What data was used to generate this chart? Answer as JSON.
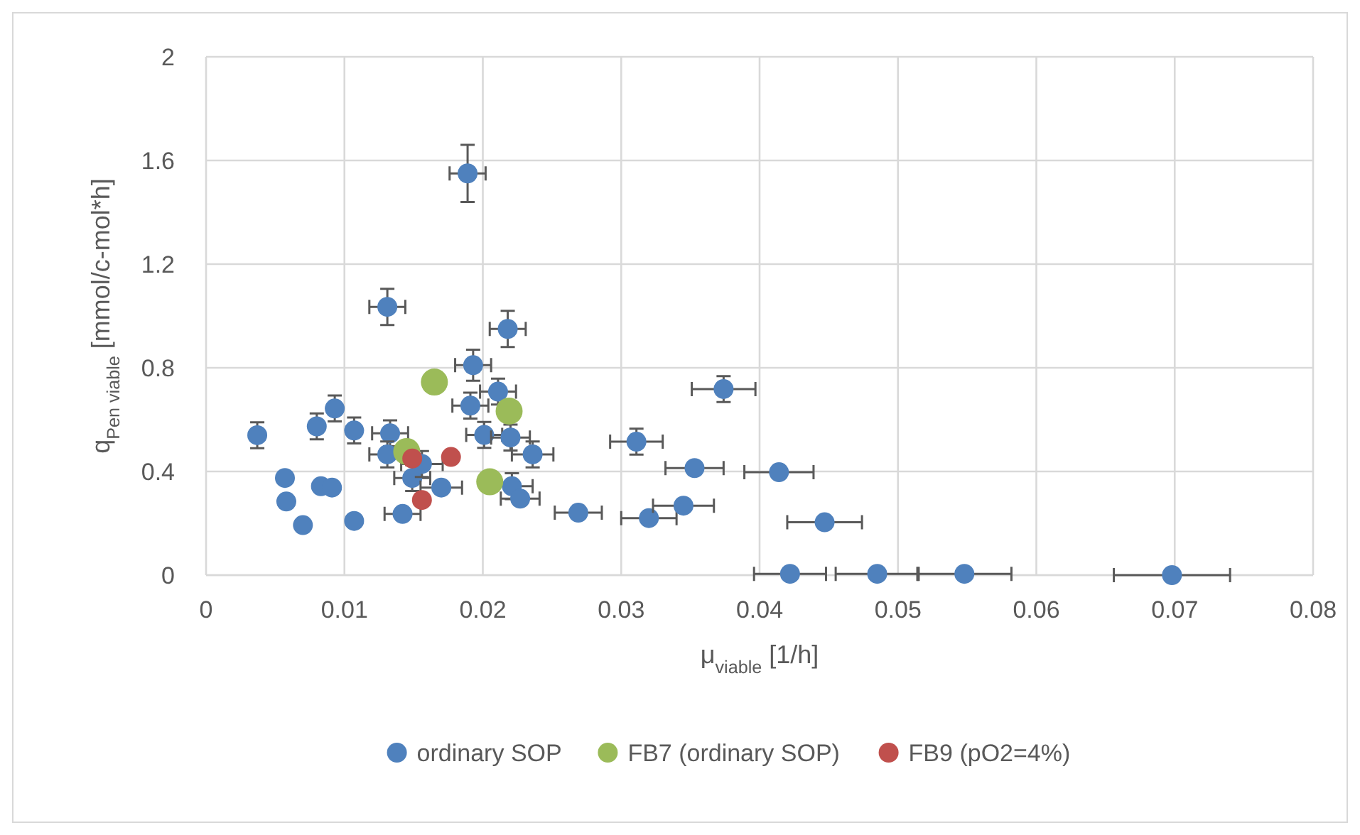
{
  "chart_data": {
    "type": "scatter",
    "xlabel": "μ$_{viable}$ [1/h]",
    "ylabel": "q$_{Pen viable}$ [mmol/c-mol*h]",
    "xlim": [
      0,
      0.08
    ],
    "xticks": [
      0,
      0.01,
      0.02,
      0.03,
      0.04,
      0.05,
      0.06,
      0.07,
      0.08
    ],
    "ylim": [
      0,
      2
    ],
    "yticks": [
      0,
      0.4,
      0.8,
      1.2,
      1.6,
      2
    ],
    "grid": true,
    "legend": "bottom",
    "marker": "circle",
    "series": [
      {
        "name": "ordinary SOP",
        "color": "#4f81bd",
        "x": [
          0.0037,
          0.0057,
          0.0058,
          0.007,
          0.008,
          0.0093,
          0.0083,
          0.0091,
          0.0107,
          0.0107,
          0.0133,
          0.0131,
          0.0142,
          0.0149,
          0.0156,
          0.017,
          0.0193,
          0.0211,
          0.0191,
          0.0201,
          0.022,
          0.0236,
          0.0221,
          0.0227,
          0.0269,
          0.0218,
          0.0131,
          0.0189,
          0.0374,
          0.0311,
          0.0353,
          0.0414,
          0.032,
          0.0345,
          0.0447,
          0.0422,
          0.0485,
          0.0548,
          0.0698
        ],
        "values": [
          0.54,
          0.375,
          0.284,
          0.193,
          0.574,
          0.643,
          0.343,
          0.338,
          0.558,
          0.209,
          0.547,
          0.466,
          0.236,
          0.375,
          0.429,
          0.338,
          0.81,
          0.708,
          0.654,
          0.541,
          0.531,
          0.466,
          0.343,
          0.295,
          0.241,
          0.95,
          1.035,
          1.55,
          0.718,
          0.515,
          0.413,
          0.397,
          0.22,
          0.268,
          0.204,
          0.005,
          0.005,
          0.005,
          0
        ],
        "errors": [
          0.05,
          null,
          null,
          null,
          0.05,
          0.05,
          null,
          null,
          0.05,
          null,
          0.05,
          0.05,
          null,
          0.05,
          0.05,
          null,
          0.06,
          0.05,
          0.05,
          0.05,
          0.05,
          0.05,
          0.05,
          null,
          null,
          0.07,
          0.07,
          0.11,
          0.05,
          0.05,
          null,
          null,
          null,
          null,
          null,
          null,
          null,
          null,
          null
        ],
        "xerrors": [
          null,
          null,
          null,
          null,
          null,
          null,
          null,
          null,
          null,
          null,
          0.0013,
          0.0013,
          0.0013,
          0.0013,
          0.0015,
          0.0015,
          0.0013,
          0.0013,
          0.0013,
          0.0013,
          0.0014,
          0.0015,
          0.0015,
          0.0014,
          0.0017,
          0.0013,
          0.0013,
          0.0013,
          0.0023,
          0.0019,
          0.0021,
          0.0025,
          0.002,
          0.0022,
          0.0027,
          0.0026,
          0.003,
          0.0034,
          0.0042
        ]
      },
      {
        "name": "FB7 (ordinary SOP)",
        "color": "#9bbb59",
        "x": [
          0.0165,
          0.0219,
          0.0145,
          0.0205
        ],
        "values": [
          0.745,
          0.633,
          0.477,
          0.36
        ]
      },
      {
        "name": "FB9 (pO2=4%)",
        "color": "#c0504d",
        "x": [
          0.0149,
          0.0177,
          0.0156
        ],
        "values": [
          0.45,
          0.456,
          0.29
        ]
      }
    ]
  }
}
